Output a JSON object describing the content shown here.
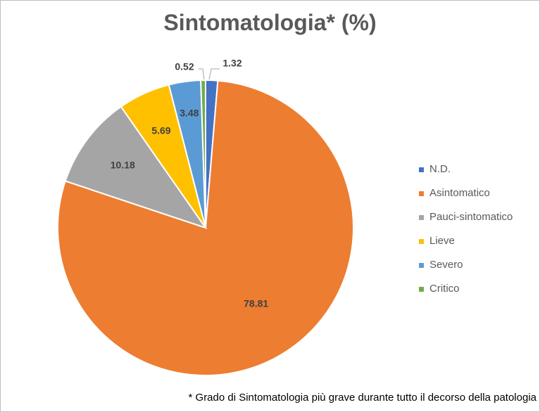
{
  "chart_data": {
    "type": "pie",
    "title": "Sintomatologia* (%)",
    "categories": [
      "N.D.",
      "Asintomatico",
      "Pauci-sintomatico",
      "Lieve",
      "Severo",
      "Critico"
    ],
    "values": [
      1.32,
      78.81,
      10.18,
      5.69,
      3.48,
      0.52
    ],
    "labels": [
      "1.32",
      "78.81",
      "10.18",
      "5.69",
      "3.48",
      "0.52"
    ],
    "colors": [
      "#4472c4",
      "#ed7d31",
      "#a5a5a5",
      "#ffc000",
      "#5b9bd5",
      "#70ad47"
    ],
    "legend_position": "right",
    "start_angle_deg": 0,
    "direction": "clockwise"
  },
  "footnote": "* Grado di Sintomatologia più grave durante tutto il decorso della patologia"
}
